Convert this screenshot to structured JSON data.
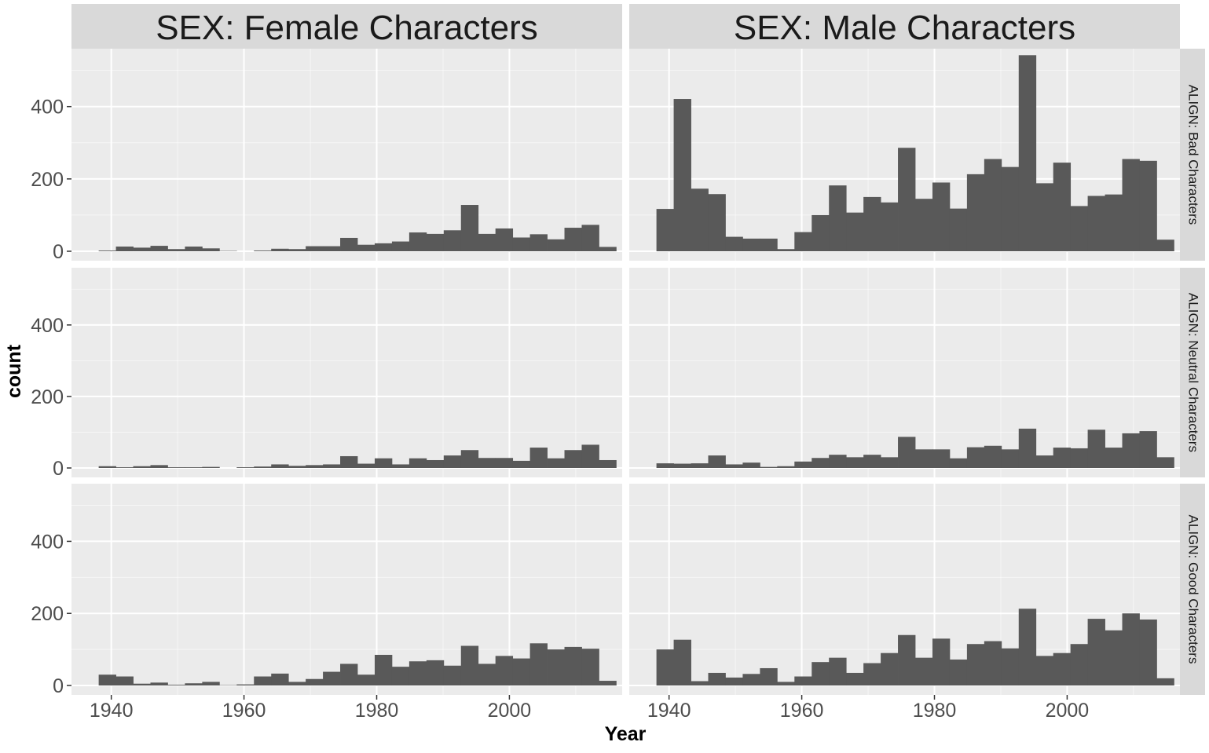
{
  "chart_data": {
    "type": "bar",
    "xlabel": "Year",
    "ylabel": "count",
    "xlim": [
      1934,
      2017
    ],
    "ylim": [
      0,
      560
    ],
    "x_ticks": [
      1940,
      1960,
      1980,
      2000
    ],
    "y_ticks": [
      0,
      200,
      400
    ],
    "grid": true,
    "bin_width": 2.6,
    "bin_start": 1938.1,
    "colors": {
      "bar": "#595959",
      "panel": "#ebebeb",
      "strip": "#d9d9d9",
      "grid": "#ffffff",
      "text": "#4d4d4d"
    },
    "col_facets": [
      "SEX: Female Characters",
      "SEX: Male Characters"
    ],
    "row_facets": [
      "ALIGN: Bad Characters",
      "ALIGN: Neutral Characters",
      "ALIGN: Good Characters"
    ],
    "panels": [
      {
        "col": "SEX: Female Characters",
        "row": "ALIGN: Bad Characters",
        "values": [
          2,
          13,
          10,
          15,
          6,
          13,
          8,
          1,
          0,
          2,
          7,
          6,
          14,
          14,
          37,
          18,
          22,
          27,
          52,
          48,
          58,
          128,
          48,
          63,
          38,
          47,
          33,
          65,
          73,
          12
        ]
      },
      {
        "col": "SEX: Male Characters",
        "row": "ALIGN: Bad Characters",
        "values": [
          117,
          421,
          173,
          158,
          40,
          35,
          35,
          6,
          53,
          100,
          182,
          107,
          150,
          135,
          286,
          145,
          190,
          118,
          213,
          255,
          233,
          542,
          188,
          245,
          125,
          153,
          157,
          255,
          250,
          32
        ]
      },
      {
        "col": "SEX: Female Characters",
        "row": "ALIGN: Neutral Characters",
        "values": [
          5,
          2,
          5,
          8,
          2,
          2,
          3,
          0,
          2,
          4,
          10,
          6,
          8,
          10,
          33,
          12,
          27,
          10,
          27,
          22,
          35,
          50,
          28,
          28,
          20,
          57,
          27,
          50,
          65,
          22
        ]
      },
      {
        "col": "SEX: Male Characters",
        "row": "ALIGN: Neutral Characters",
        "values": [
          13,
          12,
          13,
          35,
          10,
          15,
          3,
          5,
          18,
          28,
          37,
          30,
          37,
          30,
          87,
          52,
          52,
          27,
          58,
          62,
          52,
          110,
          35,
          57,
          55,
          107,
          57,
          97,
          103,
          30
        ]
      },
      {
        "col": "SEX: Female Characters",
        "row": "ALIGN: Good Characters",
        "values": [
          30,
          25,
          5,
          8,
          2,
          6,
          10,
          1,
          3,
          25,
          33,
          10,
          18,
          38,
          60,
          30,
          85,
          52,
          67,
          70,
          55,
          110,
          60,
          82,
          75,
          117,
          100,
          107,
          102,
          13
        ]
      },
      {
        "col": "SEX: Male Characters",
        "row": "ALIGN: Good Characters",
        "values": [
          100,
          127,
          12,
          35,
          22,
          32,
          48,
          10,
          25,
          65,
          77,
          35,
          62,
          90,
          140,
          77,
          130,
          72,
          115,
          123,
          103,
          213,
          82,
          90,
          115,
          185,
          153,
          200,
          183,
          20
        ]
      }
    ]
  }
}
